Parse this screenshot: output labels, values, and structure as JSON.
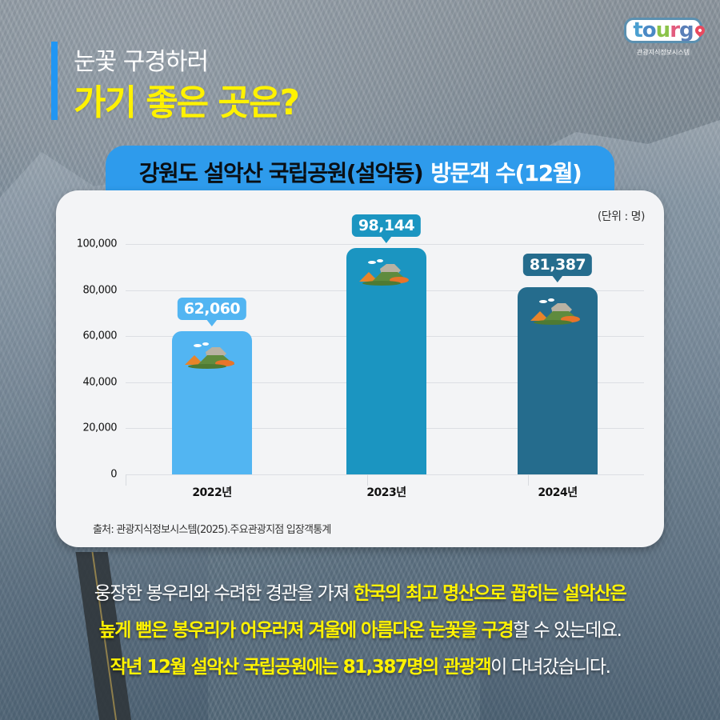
{
  "header": {
    "subtitle": "눈꽃 구경하러",
    "title": "가기 좋은 곳은?",
    "accent_color": "#2196f3",
    "title_color": "#fff200"
  },
  "logo": {
    "word_parts": [
      "t",
      "o",
      "u",
      "r",
      "g"
    ],
    "caption": "관광지식정보시스템",
    "icon": "location-pin-icon"
  },
  "chart_title": {
    "dark_part": "강원도 설악산 국립공원(설악동)",
    "light_part": "방문객 수(12월)"
  },
  "chart_data": {
    "type": "bar",
    "title": "강원도 설악산 국립공원(설악동) 방문객 수(12월)",
    "unit": "(단위 : 명)",
    "categories": [
      "2022년",
      "2023년",
      "2024년"
    ],
    "values": [
      62060,
      98144,
      81387
    ],
    "value_labels": [
      "62,060",
      "98,144",
      "81,387"
    ],
    "bar_colors": [
      "#52b5f2",
      "#1b95c1",
      "#256c8d"
    ],
    "xlabel": "",
    "ylabel": "",
    "ylim": [
      0,
      100000
    ],
    "yticks": [
      0,
      20000,
      40000,
      60000,
      80000,
      100000
    ],
    "ytick_labels": [
      "0",
      "20,000",
      "40,000",
      "60,000",
      "80,000",
      "100,000"
    ],
    "grid": true,
    "legend": null,
    "source": "출처: 관광지식정보시스템(2025).주요관광지점 입장객통계"
  },
  "description": {
    "line1": [
      {
        "text": "웅장한 봉우리와 수려한 경관을 가져 ",
        "style": "white"
      },
      {
        "text": "한국의 최고 명산으로 꼽히는 설악산은",
        "style": "yellow"
      }
    ],
    "line2": [
      {
        "text": "높게 뻗은 봉우리가 어우러져 겨울에 아름다운 눈꽃을 구경",
        "style": "yellow"
      },
      {
        "text": "할 수 있는데요.",
        "style": "white"
      }
    ],
    "line3": [
      {
        "text": "작년 12월 설악산 국립공원에는 81,387명의 관광객",
        "style": "yellow"
      },
      {
        "text": "이 다녀갔습니다.",
        "style": "white"
      }
    ]
  }
}
